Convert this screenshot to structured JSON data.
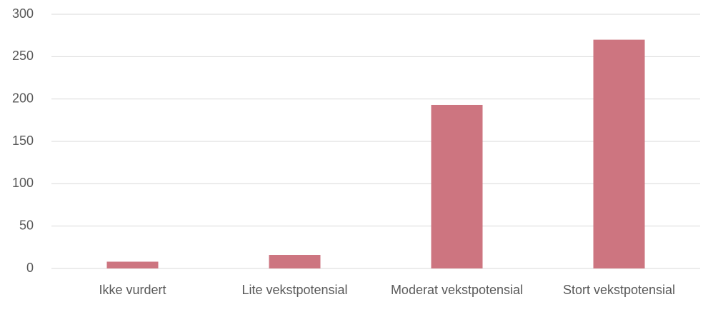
{
  "chart_data": {
    "type": "bar",
    "categories": [
      "Ikke vurdert",
      "Lite vekstpotensial",
      "Moderat vekstpotensial",
      "Stort vekstpotensial"
    ],
    "values": [
      8,
      16,
      193,
      270
    ],
    "color": "#cd7580",
    "ylim": [
      0,
      300
    ],
    "yticks": [
      0,
      50,
      100,
      150,
      200,
      250,
      300
    ],
    "grid": true
  }
}
